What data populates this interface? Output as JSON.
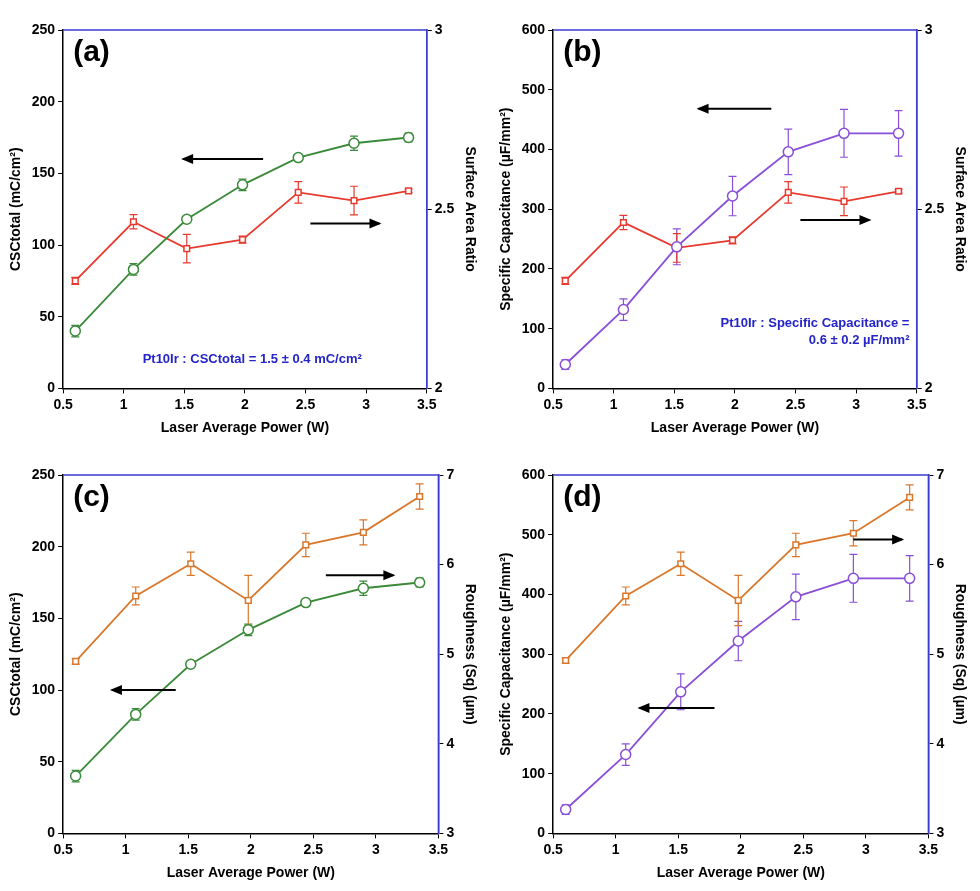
{
  "chart_data": [
    {
      "type": "line",
      "title": "(a)",
      "x_label": "Laser Average Power (W)",
      "y_label": "CSCtotal (mC/cm²)",
      "y2_label": "Surface Area Ratio",
      "x": [
        0.6,
        1.08,
        1.52,
        1.98,
        2.44,
        2.9,
        3.35
      ],
      "xlim": [
        0.5,
        3.5
      ],
      "xticks": [
        0.5,
        1,
        1.5,
        2,
        2.5,
        3,
        3.5
      ],
      "ylim": [
        0,
        250
      ],
      "yticks": [
        0,
        50,
        100,
        150,
        200,
        250
      ],
      "y2lim": [
        2,
        3
      ],
      "y2ticks": [
        2,
        2.5,
        3
      ],
      "grid": false,
      "annotations": [
        "Pt10Ir : CSCtotal = 1.5 ± 0.4 mC/cm²"
      ],
      "series": [
        {
          "color": "#3a8a3a",
          "marker": "circle",
          "values": [
            40,
            83,
            118,
            142,
            161,
            171,
            175
          ],
          "errors": [
            4,
            4,
            2,
            4,
            1,
            5,
            3
          ]
        },
        {
          "color": "#e8392e",
          "marker": "square",
          "axis": "y2",
          "values": [
            2.3,
            2.465,
            2.39,
            2.415,
            2.547,
            2.524,
            2.551
          ],
          "errors": [
            0.01,
            0.02,
            0.04,
            0.01,
            0.03,
            0.04,
            0.005
          ]
        }
      ]
    },
    {
      "type": "line",
      "title": "(b)",
      "x_label": "Laser Average Power (W)",
      "y_label": "Specific Capacitance (µF/mm²)",
      "y2_label": "Surface Area Ratio",
      "x": [
        0.6,
        1.08,
        1.52,
        1.98,
        2.44,
        2.9,
        3.35
      ],
      "xlim": [
        0.5,
        3.5
      ],
      "xticks": [
        0.5,
        1,
        1.5,
        2,
        2.5,
        3,
        3.5
      ],
      "ylim": [
        0,
        600
      ],
      "yticks": [
        0,
        100,
        200,
        300,
        400,
        500,
        600
      ],
      "y2lim": [
        2,
        3
      ],
      "y2ticks": [
        2,
        2.5,
        3
      ],
      "grid": false,
      "annotations": [
        "Pt10Ir : Specific Capacitance =",
        "0.6 ± 0.2 µF/mm²"
      ],
      "series": [
        {
          "color": "#8a4fd8",
          "marker": "circle",
          "values": [
            40,
            132,
            237,
            322,
            396,
            427,
            427
          ],
          "errors": [
            8,
            18,
            30,
            33,
            38,
            40,
            38
          ]
        },
        {
          "color": "#e8392e",
          "marker": "square",
          "axis": "y2",
          "values": [
            2.3,
            2.463,
            2.392,
            2.413,
            2.547,
            2.522,
            2.55
          ],
          "errors": [
            0.01,
            0.02,
            0.04,
            0.01,
            0.03,
            0.04,
            0.005
          ]
        }
      ]
    },
    {
      "type": "line",
      "title": "(c)",
      "x_label": "Laser Average Power (W)",
      "y_label": "CSCtotal (mC/cm²)",
      "y2_label": "Roughness (Sq) (µm)",
      "x": [
        0.6,
        1.08,
        1.52,
        1.98,
        2.44,
        2.9,
        3.35
      ],
      "xlim": [
        0.5,
        3.5
      ],
      "xticks": [
        0.5,
        1,
        1.5,
        2,
        2.5,
        3,
        3.5
      ],
      "ylim": [
        0,
        250
      ],
      "yticks": [
        0,
        50,
        100,
        150,
        200,
        250
      ],
      "y2lim": [
        3,
        7
      ],
      "y2ticks": [
        3,
        4,
        5,
        6,
        7
      ],
      "grid": false,
      "series": [
        {
          "color": "#3a8a3a",
          "marker": "circle",
          "values": [
            40,
            83,
            118,
            142,
            161,
            171,
            175
          ],
          "errors": [
            4,
            4,
            2,
            4,
            1,
            5,
            3
          ]
        },
        {
          "color": "#d9772b",
          "marker": "square",
          "axis": "y2",
          "values": [
            4.92,
            5.65,
            6.01,
            5.6,
            6.22,
            6.36,
            6.76
          ],
          "errors": [
            0.03,
            0.1,
            0.13,
            0.28,
            0.13,
            0.14,
            0.14
          ]
        }
      ]
    },
    {
      "type": "line",
      "title": "(d)",
      "x_label": "Laser Average Power (W)",
      "y_label": "Specific Capacitance (µF/mm²)",
      "y2_label": "Roughness (Sq) (µm)",
      "x": [
        0.6,
        1.08,
        1.52,
        1.98,
        2.44,
        2.9,
        3.35
      ],
      "xlim": [
        0.5,
        3.5
      ],
      "xticks": [
        0.5,
        1,
        1.5,
        2,
        2.5,
        3,
        3.5
      ],
      "ylim": [
        0,
        600
      ],
      "yticks": [
        0,
        100,
        200,
        300,
        400,
        500,
        600
      ],
      "y2lim": [
        3,
        7
      ],
      "y2ticks": [
        3,
        4,
        5,
        6,
        7
      ],
      "grid": false,
      "series": [
        {
          "color": "#8a4fd8",
          "marker": "circle",
          "values": [
            40,
            132,
            237,
            322,
            396,
            427,
            427
          ],
          "errors": [
            8,
            18,
            30,
            33,
            38,
            40,
            38
          ]
        },
        {
          "color": "#d9772b",
          "marker": "square",
          "axis": "y2",
          "values": [
            4.93,
            5.65,
            6.01,
            5.6,
            6.22,
            6.35,
            6.75
          ],
          "errors": [
            0.03,
            0.1,
            0.13,
            0.28,
            0.13,
            0.14,
            0.14
          ]
        }
      ]
    }
  ]
}
